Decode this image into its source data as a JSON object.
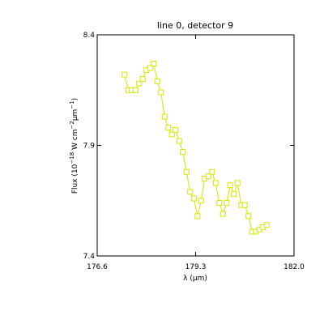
{
  "chart_data": {
    "type": "line",
    "title": "line 0, detector 9",
    "xlabel": "λ (μm)",
    "ylabel_parts": {
      "pre": "Flux (10",
      "exp1": "−18",
      "mid": " W cm",
      "exp2": "−2",
      "mu": "μm",
      "exp3": "−1",
      "post": ")"
    },
    "xlim": [
      176.6,
      182.0
    ],
    "ylim": [
      7.4,
      8.4
    ],
    "x_ticks": [
      {
        "value": 176.6,
        "label": "176.6"
      },
      {
        "value": 179.3,
        "label": "179.3"
      },
      {
        "value": 182.0,
        "label": "182.0"
      }
    ],
    "y_ticks": [
      {
        "value": 7.4,
        "label": "7.4"
      },
      {
        "value": 7.9,
        "label": "7.9"
      },
      {
        "value": 8.4,
        "label": "8.4"
      }
    ],
    "grid": false,
    "marker": "square",
    "line_color": "#d4e600",
    "series": [
      {
        "x": [
          177.35,
          177.45,
          177.55,
          177.65,
          177.75,
          177.85,
          177.95,
          178.05,
          178.15,
          178.25,
          178.35,
          178.45,
          178.55,
          178.65,
          178.75,
          178.85,
          178.95,
          179.05,
          179.15,
          179.25,
          179.35,
          179.45,
          179.55,
          179.65,
          179.75,
          179.85,
          179.95,
          180.05,
          180.15,
          180.25,
          180.35,
          180.45,
          180.55,
          180.65,
          180.75,
          180.85,
          180.95,
          181.05,
          181.15,
          181.25
        ],
        "y": [
          8.22,
          8.15,
          8.15,
          8.15,
          8.18,
          8.2,
          8.24,
          8.25,
          8.27,
          8.19,
          8.14,
          8.03,
          7.98,
          7.95,
          7.97,
          7.92,
          7.87,
          7.78,
          7.69,
          7.66,
          7.58,
          7.65,
          7.75,
          7.76,
          7.78,
          7.73,
          7.64,
          7.59,
          7.64,
          7.72,
          7.68,
          7.73,
          7.63,
          7.63,
          7.58,
          7.51,
          7.51,
          7.52,
          7.53,
          7.54
        ]
      }
    ]
  }
}
